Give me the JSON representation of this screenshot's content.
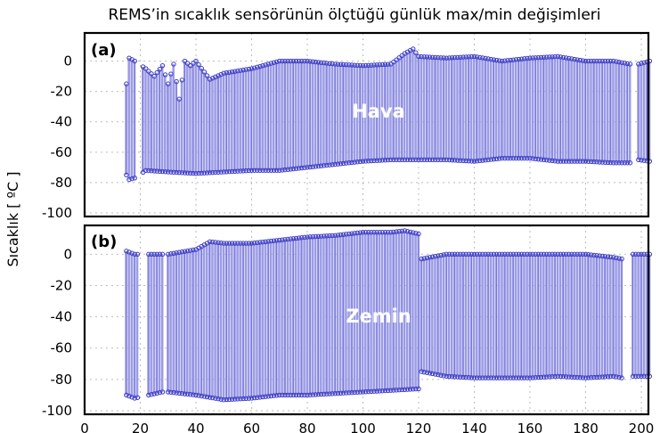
{
  "title": "REMS’in sıcaklık sensörünün ölçtüğü günlük max/min değişimleri",
  "ylabel": "Sıcaklık [ ºC ]",
  "colors": {
    "bar_fill": "#9b9be6",
    "bar_edge": "#4a4ad0",
    "marker": "#3b3bc4",
    "label_white": "#ffffff",
    "frame": "#000000",
    "grid": "#bbbbbb"
  },
  "chart_data": [
    {
      "type": "range-bar",
      "panel_label": "(a)",
      "series_label": "Hava",
      "xlim": [
        0,
        200
      ],
      "ylim": [
        -100,
        15
      ],
      "x_ticks": [
        "0",
        "20",
        "40",
        "60",
        "80",
        "100",
        "120",
        "140",
        "160",
        "180",
        "200"
      ],
      "y_ticks": [
        "0",
        "-20",
        "-40",
        "-60",
        "-80",
        "-100"
      ],
      "grid": true,
      "x_ranges": [
        [
          15,
          18
        ],
        [
          21,
          196
        ],
        [
          199,
          203
        ]
      ],
      "max_points": [
        [
          15,
          -15
        ],
        [
          16,
          2
        ],
        [
          18,
          0
        ],
        [
          22,
          -5
        ],
        [
          25,
          -10
        ],
        [
          28,
          -3
        ],
        [
          30,
          -15
        ],
        [
          32,
          -2
        ],
        [
          34,
          -25
        ],
        [
          36,
          0
        ],
        [
          38,
          -3
        ],
        [
          40,
          0
        ],
        [
          45,
          -12
        ],
        [
          50,
          -8
        ],
        [
          60,
          -5
        ],
        [
          70,
          0
        ],
        [
          80,
          0
        ],
        [
          90,
          -2
        ],
        [
          100,
          -3
        ],
        [
          110,
          -2
        ],
        [
          115,
          5
        ],
        [
          118,
          8
        ],
        [
          120,
          3
        ],
        [
          130,
          2
        ],
        [
          140,
          3
        ],
        [
          150,
          0
        ],
        [
          160,
          2
        ],
        [
          170,
          3
        ],
        [
          180,
          0
        ],
        [
          190,
          0
        ],
        [
          196,
          -2
        ],
        [
          199,
          -2
        ],
        [
          203,
          0
        ]
      ],
      "min_points": [
        [
          15,
          -75
        ],
        [
          16,
          -78
        ],
        [
          18,
          -77
        ],
        [
          22,
          -72
        ],
        [
          30,
          -73
        ],
        [
          40,
          -74
        ],
        [
          50,
          -73
        ],
        [
          60,
          -72
        ],
        [
          70,
          -72
        ],
        [
          80,
          -70
        ],
        [
          90,
          -68
        ],
        [
          100,
          -66
        ],
        [
          110,
          -65
        ],
        [
          120,
          -65
        ],
        [
          130,
          -65
        ],
        [
          140,
          -66
        ],
        [
          150,
          -64
        ],
        [
          160,
          -64
        ],
        [
          170,
          -66
        ],
        [
          180,
          -66
        ],
        [
          190,
          -67
        ],
        [
          196,
          -67
        ],
        [
          199,
          -65
        ],
        [
          203,
          -66
        ]
      ]
    },
    {
      "type": "range-bar",
      "panel_label": "(b)",
      "series_label": "Zemin",
      "xlim": [
        0,
        200
      ],
      "ylim": [
        -100,
        15
      ],
      "x_ticks": [
        "0",
        "20",
        "40",
        "60",
        "80",
        "100",
        "120",
        "140",
        "160",
        "180",
        "200"
      ],
      "y_ticks": [
        "0",
        "-20",
        "-40",
        "-60",
        "-80",
        "-100"
      ],
      "grid": true,
      "x_ranges": [
        [
          15,
          19
        ],
        [
          23,
          28
        ],
        [
          30,
          120
        ],
        [
          121,
          193
        ],
        [
          197,
          203
        ]
      ],
      "max_points": [
        [
          15,
          2
        ],
        [
          18,
          0
        ],
        [
          23,
          0
        ],
        [
          28,
          0
        ],
        [
          30,
          0
        ],
        [
          40,
          3
        ],
        [
          45,
          8
        ],
        [
          50,
          7
        ],
        [
          60,
          7
        ],
        [
          70,
          9
        ],
        [
          80,
          11
        ],
        [
          90,
          12
        ],
        [
          100,
          14
        ],
        [
          110,
          14
        ],
        [
          115,
          15
        ],
        [
          120,
          13
        ],
        [
          121,
          -3
        ],
        [
          130,
          0
        ],
        [
          140,
          0
        ],
        [
          150,
          0
        ],
        [
          160,
          0
        ],
        [
          170,
          0
        ],
        [
          180,
          0
        ],
        [
          190,
          -2
        ],
        [
          193,
          -3
        ],
        [
          197,
          0
        ],
        [
          203,
          0
        ]
      ],
      "min_points": [
        [
          15,
          -90
        ],
        [
          18,
          -92
        ],
        [
          23,
          -90
        ],
        [
          28,
          -88
        ],
        [
          30,
          -88
        ],
        [
          40,
          -90
        ],
        [
          50,
          -93
        ],
        [
          60,
          -92
        ],
        [
          70,
          -90
        ],
        [
          80,
          -90
        ],
        [
          90,
          -89
        ],
        [
          100,
          -88
        ],
        [
          110,
          -87
        ],
        [
          120,
          -86
        ],
        [
          121,
          -75
        ],
        [
          130,
          -78
        ],
        [
          140,
          -79
        ],
        [
          150,
          -79
        ],
        [
          160,
          -79
        ],
        [
          170,
          -78
        ],
        [
          180,
          -79
        ],
        [
          190,
          -78
        ],
        [
          193,
          -79
        ],
        [
          197,
          -78
        ],
        [
          203,
          -78
        ]
      ]
    }
  ]
}
